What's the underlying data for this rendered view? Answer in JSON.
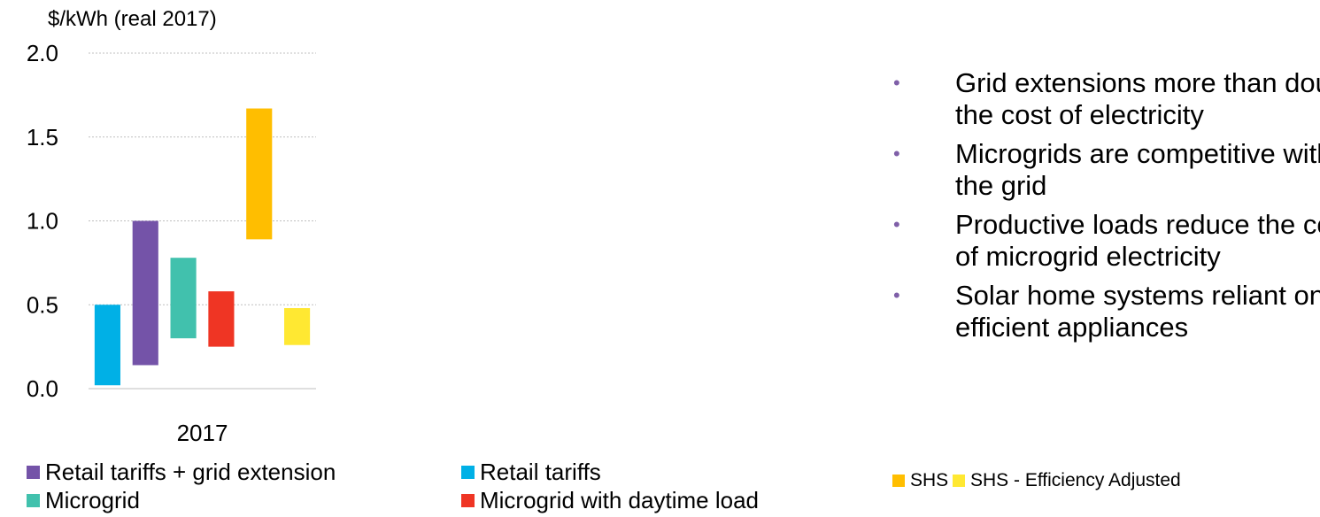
{
  "chart_data": {
    "type": "bar",
    "variant": "floating-range",
    "ylabel": "$/kWh (real 2017)",
    "ylim": [
      0,
      2.0
    ],
    "yticks": [
      "0.0",
      "0.5",
      "1.0",
      "1.5",
      "2.0"
    ],
    "ytick_values": [
      0,
      0.5,
      1.0,
      1.5,
      2.0
    ],
    "categories": [
      "2017"
    ],
    "grid": true,
    "series": [
      {
        "name": "Retail tariffs",
        "low": 0.02,
        "high": 0.5,
        "color": "#00b0e6"
      },
      {
        "name": "Retail tariffs + grid extension",
        "low": 0.14,
        "high": 1.0,
        "color": "#7453a8"
      },
      {
        "name": "Microgrid",
        "low": 0.3,
        "high": 0.78,
        "color": "#41c1ad"
      },
      {
        "name": "Microgrid with daytime load",
        "low": 0.25,
        "high": 0.58,
        "color": "#ef3524"
      },
      {
        "name": "SHS",
        "low": 0.89,
        "high": 1.67,
        "color": "#ffbe00"
      },
      {
        "name": "SHS - Efficiency Adjusted",
        "low": 0.26,
        "high": 0.48,
        "color": "#ffe832"
      }
    ]
  },
  "legend_left": [
    {
      "label": "Retail tariffs + grid extension",
      "color": "#7453a8"
    },
    {
      "label": "Retail tariffs",
      "color": "#00b0e6"
    },
    {
      "label": "Microgrid",
      "color": "#41c1ad"
    },
    {
      "label": "Microgrid with daytime load",
      "color": "#ef3524"
    }
  ],
  "legend_right": [
    {
      "label": "SHS",
      "color": "#ffbe00"
    },
    {
      "label": "SHS - Efficiency Adjusted",
      "color": "#ffe832"
    }
  ],
  "bullets": [
    "Grid extensions more than double the cost of electricity",
    "Microgrids are competitive with the grid",
    "Productive loads reduce the cost of microgrid electricity",
    "Solar home systems reliant on efficient appliances"
  ],
  "bullet_marker": "•",
  "colors": {
    "grid": "#bfbfbf",
    "bullet": "#7f5fa8"
  }
}
